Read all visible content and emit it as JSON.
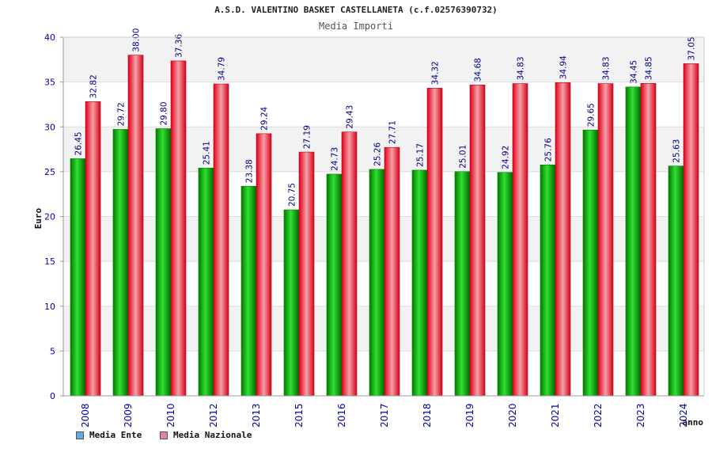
{
  "title": "A.S.D. VALENTINO BASKET CASTELLANETA (c.f.02576390732)",
  "subtitle": "Media Importi",
  "colors": {
    "ente": "#10b010",
    "nazionale": "#e8202c",
    "legend_ente": "#6aa8e8",
    "legend_nazionale": "#e880a8",
    "axis_text": "#0000aa",
    "value_text": "#000088",
    "band": "#f2f2f2"
  },
  "legend": [
    {
      "label": "Media Ente",
      "color": "#6aa8e8"
    },
    {
      "label": "Media Nazionale",
      "color": "#e880a8"
    }
  ],
  "chart_data": {
    "type": "bar",
    "title": "A.S.D. VALENTINO BASKET CASTELLANETA (c.f.02576390732)",
    "subtitle": "Media Importi",
    "xlabel": "anno",
    "ylabel": "Euro",
    "ylim": [
      0,
      40
    ],
    "yticks": [
      0,
      5,
      10,
      15,
      20,
      25,
      30,
      35,
      40
    ],
    "grid": true,
    "legend_position": "bottom-left",
    "categories": [
      "2008",
      "2009",
      "2010",
      "2012",
      "2013",
      "2015",
      "2016",
      "2017",
      "2018",
      "2019",
      "2020",
      "2021",
      "2022",
      "2023",
      "2024"
    ],
    "series": [
      {
        "name": "Media Ente",
        "values": [
          26.45,
          29.72,
          29.8,
          25.41,
          23.38,
          20.75,
          24.73,
          25.26,
          25.17,
          25.01,
          24.92,
          25.76,
          29.65,
          34.45,
          25.63
        ],
        "labels": [
          "26.45",
          "29.72",
          "29.80",
          "25.41",
          "23.38",
          "20.75",
          "24.73",
          "25.26",
          "25.17",
          "25.01",
          "24.92",
          "25.76",
          "29.65",
          "34.45",
          "25.63"
        ]
      },
      {
        "name": "Media Nazionale",
        "values": [
          32.82,
          38.0,
          37.36,
          34.79,
          29.24,
          27.19,
          29.43,
          27.71,
          34.32,
          34.68,
          34.83,
          34.94,
          34.83,
          34.85,
          37.05
        ],
        "labels": [
          "32.82",
          "38.00",
          "37.36",
          "34.79",
          "29.24",
          "27.19",
          "29.43",
          "27.71",
          "34.32",
          "34.68",
          "34.83",
          "34.94",
          "34.83",
          "34.85",
          "37.05"
        ]
      }
    ]
  }
}
